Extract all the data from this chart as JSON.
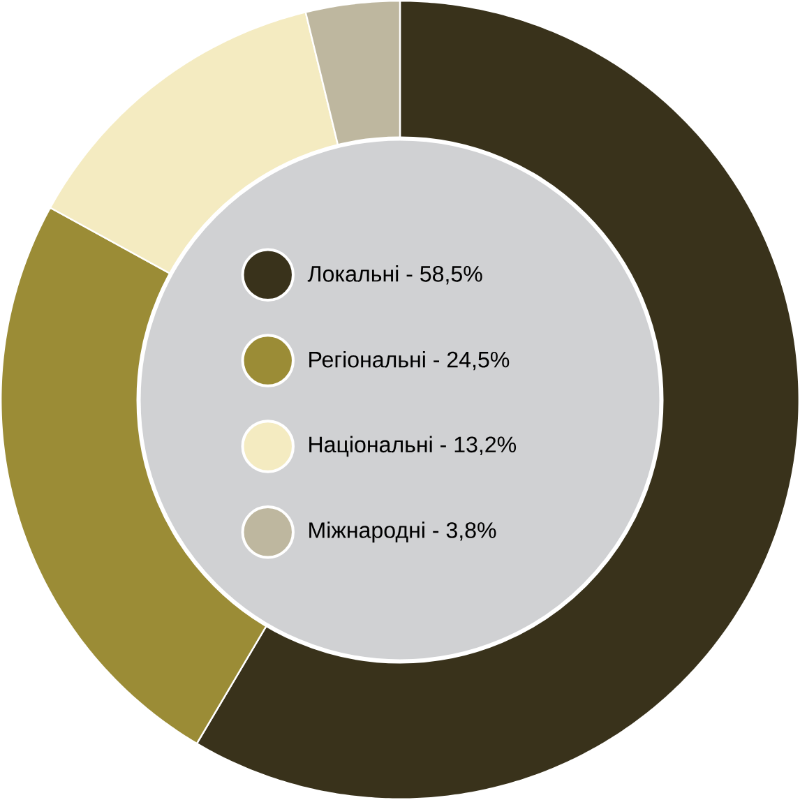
{
  "chart_data": {
    "type": "donut",
    "categories": [
      "Локальні - 58,5%",
      "Регіональні - 24,5%",
      "Національні - 13,2%",
      "Міжнародні - 3,8%"
    ],
    "values": [
      58.5,
      24.5,
      13.2,
      3.8
    ],
    "colors": [
      "#39321b",
      "#9b8c36",
      "#f4ebc1",
      "#beb79f"
    ],
    "legend": "center"
  }
}
